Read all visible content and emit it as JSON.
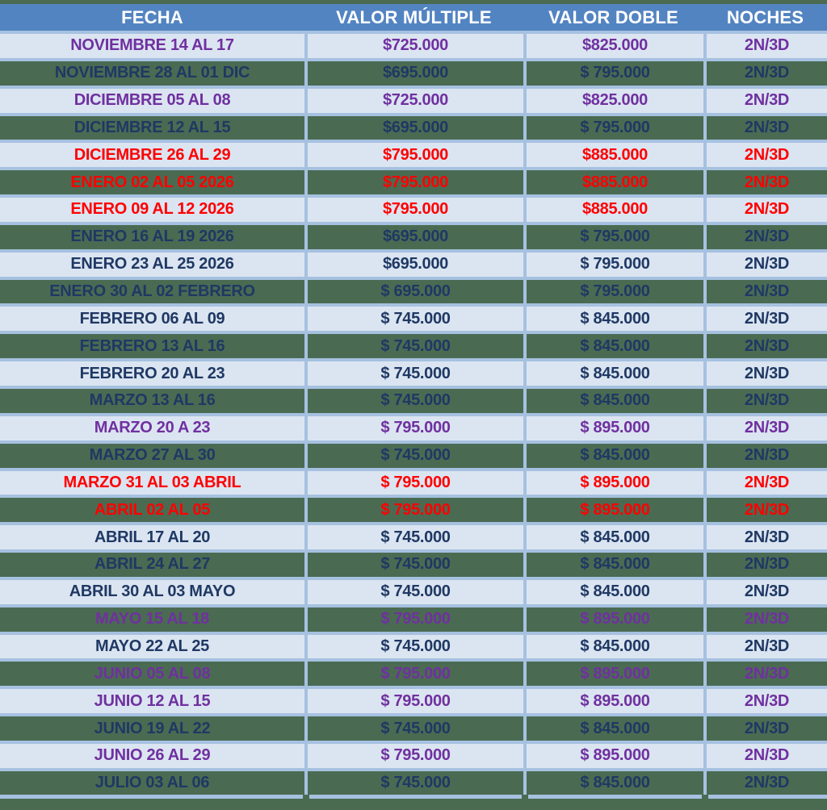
{
  "colors": {
    "header_bg": "#5384c2",
    "header_text": "#ffffff",
    "row_light_bg": "#dbe5f1",
    "row_green_bg": "#4a6b52",
    "divider_blue": "#a6c1e0",
    "text_purple": "#7030a0",
    "text_navy": "#1f3864",
    "text_red": "#ff0000",
    "frame_green": "#4a6b50"
  },
  "header": {
    "fecha": "FECHA",
    "multiple": "VALOR MÚLTIPLE",
    "doble": "VALOR DOBLE",
    "noches": "NOCHES"
  },
  "chart_data": {
    "type": "table",
    "title": "Tabla de tarifas por fecha (2N/3D)",
    "columns": [
      "FECHA",
      "VALOR MÚLTIPLE",
      "VALOR DOBLE",
      "NOCHES"
    ],
    "rows": [
      {
        "fecha": "NOVIEMBRE 14 AL 17",
        "multiple": "$725.000",
        "doble": "$825.000",
        "noches": "2N/3D",
        "color": "purple",
        "bg": "light"
      },
      {
        "fecha": "NOVIEMBRE 28 AL 01 DIC",
        "multiple": "$695.000",
        "doble": "$ 795.000",
        "noches": "2N/3D",
        "color": "navy",
        "bg": "green"
      },
      {
        "fecha": "DICIEMBRE 05 AL 08",
        "multiple": "$725.000",
        "doble": "$825.000",
        "noches": "2N/3D",
        "color": "purple",
        "bg": "light"
      },
      {
        "fecha": "DICIEMBRE 12 AL 15",
        "multiple": "$695.000",
        "doble": "$ 795.000",
        "noches": "2N/3D",
        "color": "navy",
        "bg": "green"
      },
      {
        "fecha": "DICIEMBRE 26 AL 29",
        "multiple": "$795.000",
        "doble": "$885.000",
        "noches": "2N/3D",
        "color": "red",
        "bg": "light"
      },
      {
        "fecha": "ENERO 02 AL 05 2026",
        "multiple": "$795.000",
        "doble": "$885.000",
        "noches": "2N/3D",
        "color": "red",
        "bg": "green"
      },
      {
        "fecha": "ENERO 09 AL 12 2026",
        "multiple": "$795.000",
        "doble": "$885.000",
        "noches": "2N/3D",
        "color": "red",
        "bg": "light"
      },
      {
        "fecha": "ENERO 16 AL 19 2026",
        "multiple": "$695.000",
        "doble": "$ 795.000",
        "noches": "2N/3D",
        "color": "navy",
        "bg": "green"
      },
      {
        "fecha": "ENERO 23 AL 25 2026",
        "multiple": "$695.000",
        "doble": "$ 795.000",
        "noches": "2N/3D",
        "color": "navy",
        "bg": "light"
      },
      {
        "fecha": "ENERO 30 AL 02 FEBRERO",
        "multiple": "$ 695.000",
        "doble": "$ 795.000",
        "noches": "2N/3D",
        "color": "navy",
        "bg": "green"
      },
      {
        "fecha": "FEBRERO 06 AL 09",
        "multiple": "$ 745.000",
        "doble": "$ 845.000",
        "noches": "2N/3D",
        "color": "navy",
        "bg": "light"
      },
      {
        "fecha": "FEBRERO 13 AL 16",
        "multiple": "$ 745.000",
        "doble": "$ 845.000",
        "noches": "2N/3D",
        "color": "navy",
        "bg": "green"
      },
      {
        "fecha": "FEBRERO 20 AL 23",
        "multiple": "$ 745.000",
        "doble": "$ 845.000",
        "noches": "2N/3D",
        "color": "navy",
        "bg": "light"
      },
      {
        "fecha": "MARZO 13 AL 16",
        "multiple": "$ 745.000",
        "doble": "$ 845.000",
        "noches": "2N/3D",
        "color": "navy",
        "bg": "green"
      },
      {
        "fecha": "MARZO 20 A 23",
        "multiple": "$ 795.000",
        "doble": "$ 895.000",
        "noches": "2N/3D",
        "color": "purple",
        "bg": "light"
      },
      {
        "fecha": "MARZO 27 AL 30",
        "multiple": "$ 745.000",
        "doble": "$ 845.000",
        "noches": "2N/3D",
        "color": "navy",
        "bg": "green"
      },
      {
        "fecha": "MARZO 31 AL 03 ABRIL",
        "multiple": "$ 795.000",
        "doble": "$ 895.000",
        "noches": "2N/3D",
        "color": "red",
        "bg": "light"
      },
      {
        "fecha": "ABRIL 02 AL 05",
        "multiple": "$ 795.000",
        "doble": "$ 895.000",
        "noches": "2N/3D",
        "color": "red",
        "bg": "green"
      },
      {
        "fecha": "ABRIL 17 AL 20",
        "multiple": "$ 745.000",
        "doble": "$ 845.000",
        "noches": "2N/3D",
        "color": "navy",
        "bg": "light"
      },
      {
        "fecha": "ABRIL 24 AL 27",
        "multiple": "$ 745.000",
        "doble": "$ 845.000",
        "noches": "2N/3D",
        "color": "navy",
        "bg": "green"
      },
      {
        "fecha": "ABRIL 30 AL 03 MAYO",
        "multiple": "$ 745.000",
        "doble": "$ 845.000",
        "noches": "2N/3D",
        "color": "navy",
        "bg": "light"
      },
      {
        "fecha": "MAYO 15 AL 18",
        "multiple": "$ 795.000",
        "doble": "$ 895.000",
        "noches": "2N/3D",
        "color": "purple",
        "bg": "green"
      },
      {
        "fecha": "MAYO 22 AL 25",
        "multiple": "$ 745.000",
        "doble": "$ 845.000",
        "noches": "2N/3D",
        "color": "navy",
        "bg": "light"
      },
      {
        "fecha": "JUNIO 05 AL 08",
        "multiple": "$ 795.000",
        "doble": "$ 895.000",
        "noches": "2N/3D",
        "color": "purple",
        "bg": "green"
      },
      {
        "fecha": "JUNIO 12 AL 15",
        "multiple": "$ 795.000",
        "doble": "$ 895.000",
        "noches": "2N/3D",
        "color": "purple",
        "bg": "light"
      },
      {
        "fecha": "JUNIO 19 AL 22",
        "multiple": "$ 745.000",
        "doble": "$ 845.000",
        "noches": "2N/3D",
        "color": "navy",
        "bg": "green"
      },
      {
        "fecha": "JUNIO 26 AL 29",
        "multiple": "$ 795.000",
        "doble": "$ 895.000",
        "noches": "2N/3D",
        "color": "purple",
        "bg": "light"
      },
      {
        "fecha": "JULIO 03 AL 06",
        "multiple": "$ 745.000",
        "doble": "$ 845.000",
        "noches": "2N/3D",
        "color": "navy",
        "bg": "green"
      }
    ]
  }
}
